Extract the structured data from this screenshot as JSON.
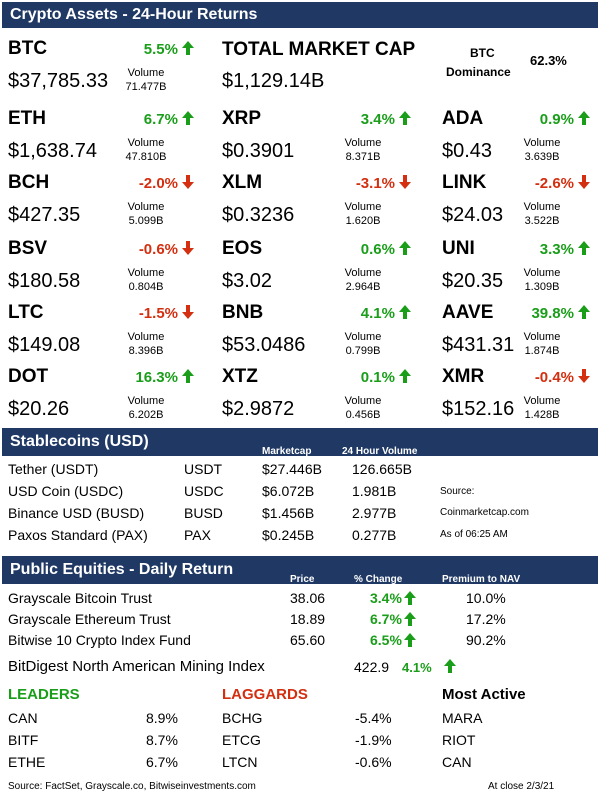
{
  "title": "Crypto Assets - 24-Hour Returns",
  "volume_label": "Volume",
  "colors": {
    "header_bg": "#1f3864",
    "positive": "#1a9e1a",
    "negative": "#d32f10"
  },
  "assets": [
    {
      "ticker": "BTC",
      "price": "$37,785.33",
      "change": "5.5%",
      "dir": "up",
      "volume": "71.477B"
    },
    {
      "ticker": "ETH",
      "price": "$1,638.74",
      "change": "6.7%",
      "dir": "up",
      "volume": "47.810B"
    },
    {
      "ticker": "XRP",
      "price": "$0.3901",
      "change": "3.4%",
      "dir": "up",
      "volume": "8.371B"
    },
    {
      "ticker": "ADA",
      "price": "$0.43",
      "change": "0.9%",
      "dir": "up",
      "volume": "3.639B"
    },
    {
      "ticker": "BCH",
      "price": "$427.35",
      "change": "-2.0%",
      "dir": "down",
      "volume": "5.099B"
    },
    {
      "ticker": "XLM",
      "price": "$0.3236",
      "change": "-3.1%",
      "dir": "down",
      "volume": "1.620B"
    },
    {
      "ticker": "LINK",
      "price": "$24.03",
      "change": "-2.6%",
      "dir": "down",
      "volume": "3.522B"
    },
    {
      "ticker": "BSV",
      "price": "$180.58",
      "change": "-0.6%",
      "dir": "down",
      "volume": "0.804B"
    },
    {
      "ticker": "EOS",
      "price": "$3.02",
      "change": "0.6%",
      "dir": "up",
      "volume": "2.964B"
    },
    {
      "ticker": "UNI",
      "price": "$20.35",
      "change": "3.3%",
      "dir": "up",
      "volume": "1.309B"
    },
    {
      "ticker": "LTC",
      "price": "$149.08",
      "change": "-1.5%",
      "dir": "down",
      "volume": "8.396B"
    },
    {
      "ticker": "BNB",
      "price": "$53.0486",
      "change": "4.1%",
      "dir": "up",
      "volume": "0.799B"
    },
    {
      "ticker": "AAVE",
      "price": "$431.31",
      "change": "39.8%",
      "dir": "up",
      "volume": "1.874B"
    },
    {
      "ticker": "DOT",
      "price": "$20.26",
      "change": "16.3%",
      "dir": "up",
      "volume": "6.202B"
    },
    {
      "ticker": "XTZ",
      "price": "$2.9872",
      "change": "0.1%",
      "dir": "up",
      "volume": "0.456B"
    },
    {
      "ticker": "XMR",
      "price": "$152.16",
      "change": "-0.4%",
      "dir": "down",
      "volume": "1.428B"
    }
  ],
  "market_cap": {
    "label": "TOTAL MARKET CAP",
    "value": "$1,129.14B",
    "dominance_label_1": "BTC",
    "dominance_label_2": "Dominance",
    "dominance_value": "62.3%"
  },
  "stablecoins": {
    "title": "Stablecoins (USD)",
    "col_marketcap": "Marketcap",
    "col_volume": "24 Hour Volume",
    "rows": [
      {
        "name": "Tether (USDT)",
        "symbol": "USDT",
        "marketcap": "$27.446B",
        "volume": "126.665B"
      },
      {
        "name": "USD Coin (USDC)",
        "symbol": "USDC",
        "marketcap": "$6.072B",
        "volume": "1.981B"
      },
      {
        "name": "Binance USD (BUSD)",
        "symbol": "BUSD",
        "marketcap": "$1.456B",
        "volume": "2.977B"
      },
      {
        "name": "Paxos Standard (PAX)",
        "symbol": "PAX",
        "marketcap": "$0.245B",
        "volume": "0.277B"
      }
    ],
    "source_label": "Source:",
    "source_value": "Coinmarketcap.com",
    "as_of": "As of 06:25 AM"
  },
  "equities": {
    "title": "Public Equities - Daily Return",
    "col_price": "Price",
    "col_change": "% Change",
    "col_premium": "Premium to NAV",
    "rows": [
      {
        "name": "Grayscale Bitcoin Trust",
        "price": "38.06",
        "change": "3.4%",
        "premium": "10.0%"
      },
      {
        "name": "Grayscale Ethereum Trust",
        "price": "18.89",
        "change": "6.7%",
        "premium": "17.2%"
      },
      {
        "name": "Bitwise 10 Crypto Index Fund",
        "price": "65.60",
        "change": "6.5%",
        "premium": "90.2%"
      }
    ],
    "mining_label": "BitDigest North American Mining Index",
    "mining_value": "422.9",
    "mining_change": "4.1%"
  },
  "leaders": {
    "title": "LEADERS",
    "rows": [
      {
        "ticker": "CAN",
        "value": "8.9%"
      },
      {
        "ticker": "BITF",
        "value": "8.7%"
      },
      {
        "ticker": "ETHE",
        "value": "6.7%"
      }
    ]
  },
  "laggards": {
    "title": "LAGGARDS",
    "rows": [
      {
        "ticker": "BCHG",
        "value": "-5.4%"
      },
      {
        "ticker": "ETCG",
        "value": "-1.9%"
      },
      {
        "ticker": "LTCN",
        "value": "-0.6%"
      }
    ]
  },
  "most_active": {
    "title": "Most Active",
    "rows": [
      "MARA",
      "RIOT",
      "CAN"
    ]
  },
  "footer": {
    "source": "Source: FactSet, Grayscale.co, Bitwiseinvestments.com",
    "close": "At close 2/3/21"
  }
}
